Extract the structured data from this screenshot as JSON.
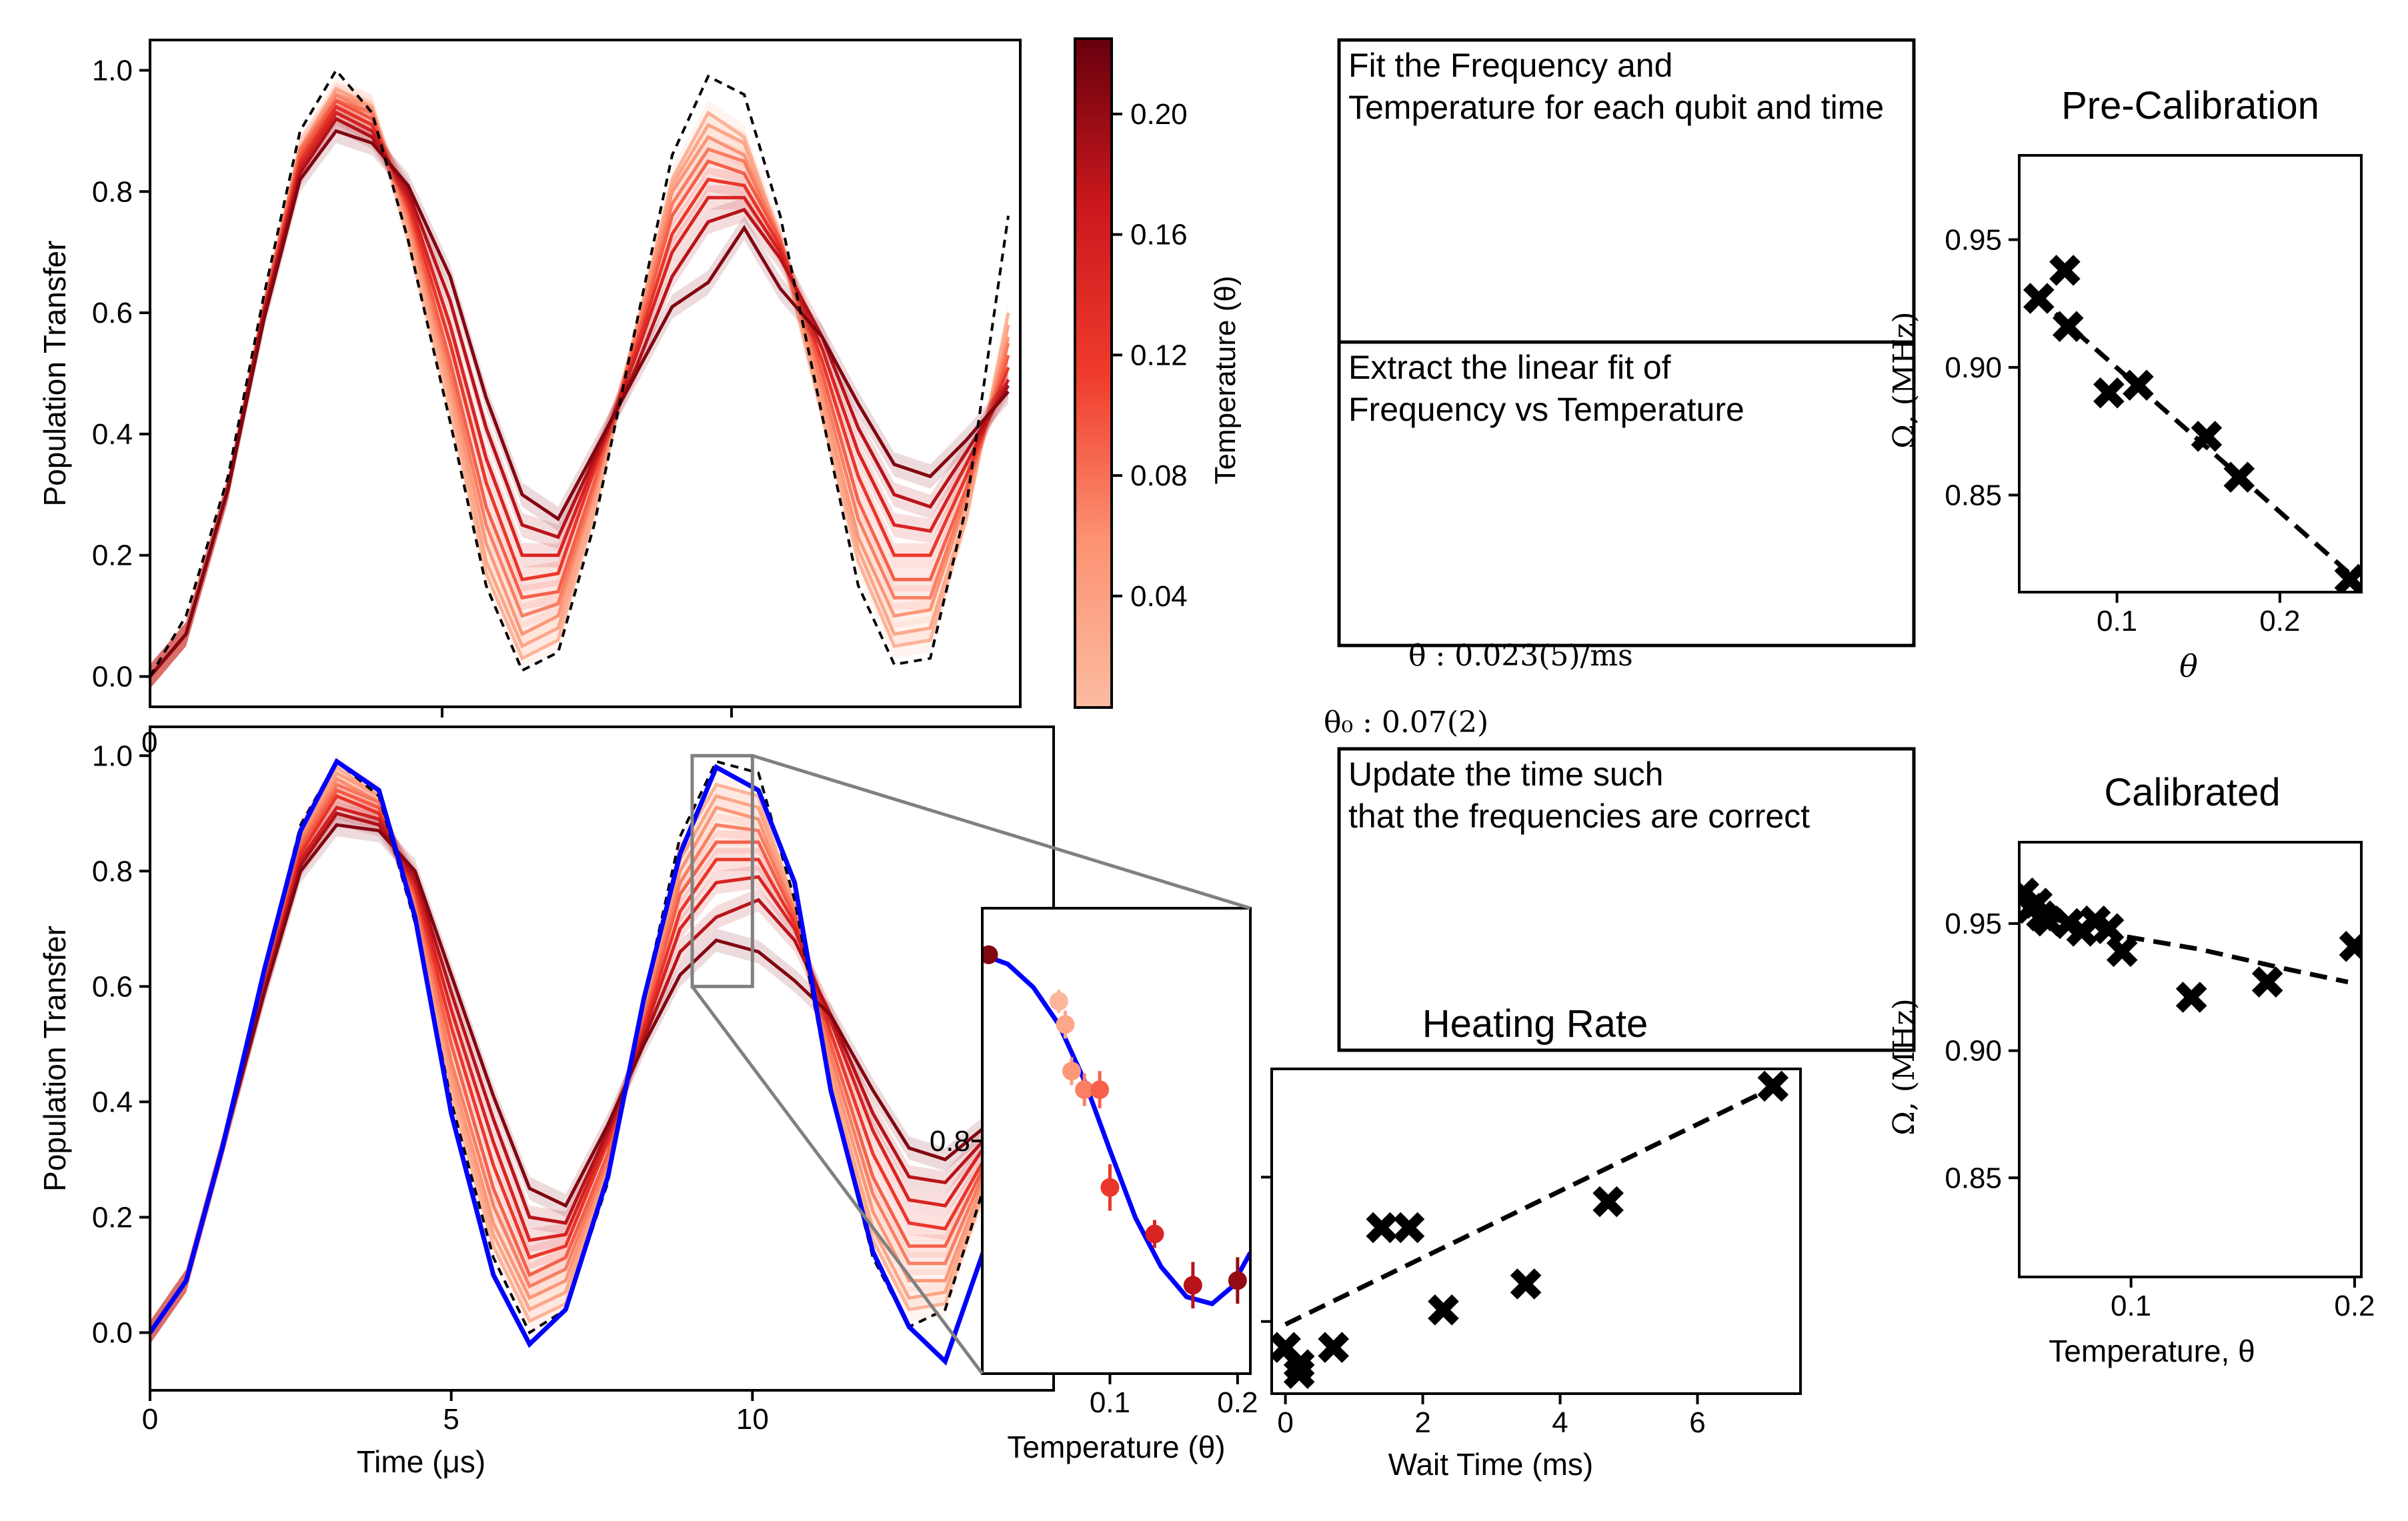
{
  "colors": {
    "low": "#fcbba1",
    "high": "#67000d",
    "fit": "#0000ff",
    "ideal": "#000000",
    "marker": "#000000",
    "box": "#000000",
    "zoom": "#808080"
  },
  "colorbar": {
    "label": "Temperature (θ)",
    "ticks": [
      "0.04",
      "0.08",
      "0.12",
      "0.16",
      "0.20"
    ],
    "tick_values": [
      0.04,
      0.08,
      0.12,
      0.16,
      0.2
    ],
    "range": [
      0.003,
      0.225
    ]
  },
  "steps": [
    {
      "text1": "Fit the Frequency and",
      "text2": " Temperature for each qubit and time"
    },
    {
      "text1": "Extract the linear fit of",
      "text2": " Frequency vs Temperature"
    },
    {
      "text1": "Update the time such",
      "text2": " that the frequencies are correct"
    }
  ],
  "fit_results": {
    "rate": "θ̇ : 0.023(5)/ms",
    "offset": "θ₀ : 0.07(2)"
  },
  "chart_data": [
    {
      "id": "raw",
      "type": "line",
      "xlabel": "",
      "ylabel": "Population Transfer",
      "xlim": [
        0,
        14.5
      ],
      "ylim": [
        -0.05,
        1.05
      ],
      "yticks": [
        0.0,
        0.2,
        0.4,
        0.6,
        0.8,
        1.0
      ],
      "ytick_labels": [
        "0.0",
        "0.2",
        "0.4",
        "0.6",
        "0.8",
        "1.0"
      ],
      "xtick_partial_label": "0",
      "x": [
        0,
        0.6,
        1.3,
        1.9,
        2.5,
        3.1,
        3.7,
        4.3,
        5.0,
        5.6,
        6.2,
        6.8,
        7.4,
        8.1,
        8.7,
        9.3,
        9.9,
        10.5,
        11.2,
        11.8,
        12.4,
        13.0,
        13.6,
        14.3
      ],
      "ideal": [
        0,
        0.1,
        0.33,
        0.63,
        0.9,
        1.0,
        0.93,
        0.72,
        0.42,
        0.15,
        0.01,
        0.04,
        0.25,
        0.58,
        0.86,
        0.99,
        0.96,
        0.76,
        0.43,
        0.15,
        0.02,
        0.03,
        0.28,
        0.76
      ],
      "series": [
        {
          "theta": 0.01,
          "values": [
            0,
            0.07,
            0.31,
            0.61,
            0.87,
            0.97,
            0.94,
            0.72,
            0.44,
            0.17,
            0.03,
            0.06,
            0.27,
            0.57,
            0.82,
            0.93,
            0.89,
            0.72,
            0.43,
            0.19,
            0.05,
            0.06,
            0.26,
            0.6
          ]
        },
        {
          "theta": 0.03,
          "values": [
            0,
            0.07,
            0.31,
            0.61,
            0.87,
            0.96,
            0.94,
            0.74,
            0.46,
            0.19,
            0.05,
            0.08,
            0.28,
            0.57,
            0.81,
            0.91,
            0.88,
            0.72,
            0.44,
            0.21,
            0.07,
            0.08,
            0.27,
            0.58
          ]
        },
        {
          "theta": 0.05,
          "values": [
            0,
            0.07,
            0.31,
            0.61,
            0.87,
            0.96,
            0.93,
            0.75,
            0.48,
            0.22,
            0.07,
            0.1,
            0.3,
            0.57,
            0.8,
            0.89,
            0.86,
            0.72,
            0.46,
            0.23,
            0.1,
            0.11,
            0.29,
            0.56
          ]
        },
        {
          "theta": 0.07,
          "values": [
            0,
            0.07,
            0.31,
            0.61,
            0.87,
            0.95,
            0.93,
            0.76,
            0.5,
            0.25,
            0.1,
            0.12,
            0.31,
            0.56,
            0.78,
            0.87,
            0.85,
            0.72,
            0.48,
            0.26,
            0.13,
            0.13,
            0.3,
            0.55
          ]
        },
        {
          "theta": 0.09,
          "values": [
            0,
            0.07,
            0.31,
            0.61,
            0.86,
            0.95,
            0.92,
            0.77,
            0.52,
            0.28,
            0.13,
            0.14,
            0.32,
            0.55,
            0.76,
            0.85,
            0.83,
            0.72,
            0.5,
            0.29,
            0.16,
            0.16,
            0.31,
            0.53
          ]
        },
        {
          "theta": 0.12,
          "values": [
            0,
            0.07,
            0.31,
            0.6,
            0.85,
            0.94,
            0.91,
            0.78,
            0.55,
            0.32,
            0.16,
            0.17,
            0.34,
            0.54,
            0.73,
            0.82,
            0.81,
            0.71,
            0.52,
            0.33,
            0.2,
            0.2,
            0.33,
            0.51
          ]
        },
        {
          "theta": 0.15,
          "values": [
            0,
            0.07,
            0.31,
            0.6,
            0.84,
            0.93,
            0.9,
            0.79,
            0.58,
            0.36,
            0.2,
            0.2,
            0.35,
            0.53,
            0.7,
            0.79,
            0.79,
            0.7,
            0.54,
            0.37,
            0.25,
            0.24,
            0.35,
            0.49
          ]
        },
        {
          "theta": 0.18,
          "values": [
            0,
            0.07,
            0.31,
            0.6,
            0.83,
            0.92,
            0.89,
            0.8,
            0.62,
            0.41,
            0.25,
            0.23,
            0.36,
            0.51,
            0.66,
            0.75,
            0.77,
            0.69,
            0.56,
            0.41,
            0.3,
            0.28,
            0.37,
            0.48
          ]
        },
        {
          "theta": 0.21,
          "values": [
            0,
            0.07,
            0.31,
            0.59,
            0.82,
            0.9,
            0.88,
            0.81,
            0.66,
            0.46,
            0.3,
            0.26,
            0.37,
            0.5,
            0.61,
            0.65,
            0.74,
            0.64,
            0.56,
            0.45,
            0.35,
            0.33,
            0.39,
            0.47
          ]
        }
      ]
    },
    {
      "id": "calibrated",
      "type": "line",
      "xlabel": "Time (μs)",
      "ylabel": "Population Transfer",
      "xlim": [
        0,
        15
      ],
      "ylim": [
        -0.1,
        1.05
      ],
      "xticks": [
        0,
        5,
        10
      ],
      "xtick_labels": [
        "0",
        "5",
        "10"
      ],
      "yticks": [
        0.0,
        0.2,
        0.4,
        0.6,
        0.8,
        1.0
      ],
      "ytick_labels": [
        "0.0",
        "0.2",
        "0.4",
        "0.6",
        "0.8",
        "1.0"
      ],
      "x": [
        0,
        0.6,
        1.2,
        1.9,
        2.5,
        3.1,
        3.8,
        4.4,
        5.0,
        5.7,
        6.3,
        6.9,
        7.6,
        8.2,
        8.8,
        9.4,
        10.1,
        10.7,
        11.3,
        12.0,
        12.6,
        13.2,
        13.9,
        14.5
      ],
      "ideal": [
        0,
        0.09,
        0.32,
        0.63,
        0.88,
        0.99,
        0.93,
        0.71,
        0.4,
        0.13,
        0.0,
        0.04,
        0.26,
        0.58,
        0.86,
        0.99,
        0.97,
        0.75,
        0.42,
        0.13,
        0.01,
        0.04,
        0.27,
        0.57
      ],
      "fit": [
        0,
        0.09,
        0.32,
        0.63,
        0.87,
        0.99,
        0.94,
        0.72,
        0.38,
        0.1,
        -0.02,
        0.04,
        0.27,
        0.58,
        0.83,
        0.98,
        0.94,
        0.78,
        0.42,
        0.14,
        0.01,
        -0.05,
        0.16,
        0.45
      ],
      "series": [
        {
          "theta": 0.01,
          "values": [
            0,
            0.09,
            0.32,
            0.62,
            0.87,
            0.98,
            0.93,
            0.72,
            0.41,
            0.15,
            0.02,
            0.05,
            0.27,
            0.57,
            0.84,
            0.95,
            0.93,
            0.74,
            0.43,
            0.16,
            0.04,
            0.05,
            0.26,
            0.55
          ]
        },
        {
          "theta": 0.03,
          "values": [
            0,
            0.09,
            0.32,
            0.62,
            0.87,
            0.97,
            0.93,
            0.73,
            0.43,
            0.17,
            0.04,
            0.07,
            0.28,
            0.57,
            0.82,
            0.93,
            0.91,
            0.74,
            0.44,
            0.18,
            0.06,
            0.07,
            0.27,
            0.54
          ]
        },
        {
          "theta": 0.05,
          "values": [
            0,
            0.09,
            0.32,
            0.62,
            0.86,
            0.96,
            0.92,
            0.74,
            0.45,
            0.19,
            0.06,
            0.09,
            0.29,
            0.56,
            0.8,
            0.91,
            0.89,
            0.73,
            0.46,
            0.21,
            0.09,
            0.09,
            0.28,
            0.52
          ]
        },
        {
          "theta": 0.07,
          "values": [
            0,
            0.09,
            0.32,
            0.61,
            0.85,
            0.95,
            0.92,
            0.75,
            0.47,
            0.22,
            0.08,
            0.11,
            0.3,
            0.55,
            0.78,
            0.88,
            0.87,
            0.73,
            0.48,
            0.24,
            0.12,
            0.12,
            0.29,
            0.51
          ]
        },
        {
          "theta": 0.09,
          "values": [
            0,
            0.09,
            0.32,
            0.61,
            0.84,
            0.94,
            0.91,
            0.76,
            0.5,
            0.25,
            0.1,
            0.13,
            0.31,
            0.54,
            0.76,
            0.85,
            0.85,
            0.72,
            0.5,
            0.27,
            0.15,
            0.15,
            0.3,
            0.49
          ]
        },
        {
          "theta": 0.12,
          "values": [
            0,
            0.09,
            0.32,
            0.6,
            0.83,
            0.93,
            0.9,
            0.77,
            0.53,
            0.29,
            0.13,
            0.15,
            0.33,
            0.53,
            0.73,
            0.82,
            0.82,
            0.71,
            0.52,
            0.31,
            0.19,
            0.18,
            0.31,
            0.47
          ]
        },
        {
          "theta": 0.15,
          "values": [
            0,
            0.09,
            0.32,
            0.6,
            0.82,
            0.91,
            0.89,
            0.78,
            0.56,
            0.33,
            0.16,
            0.17,
            0.34,
            0.52,
            0.7,
            0.78,
            0.79,
            0.7,
            0.54,
            0.35,
            0.23,
            0.22,
            0.33,
            0.46
          ]
        },
        {
          "theta": 0.18,
          "values": [
            0,
            0.09,
            0.32,
            0.59,
            0.81,
            0.9,
            0.88,
            0.79,
            0.59,
            0.37,
            0.2,
            0.19,
            0.35,
            0.51,
            0.66,
            0.72,
            0.75,
            0.68,
            0.55,
            0.38,
            0.27,
            0.26,
            0.34,
            0.45
          ]
        },
        {
          "theta": 0.21,
          "values": [
            0,
            0.09,
            0.32,
            0.59,
            0.8,
            0.88,
            0.87,
            0.8,
            0.62,
            0.41,
            0.25,
            0.22,
            0.36,
            0.5,
            0.62,
            0.68,
            0.66,
            0.61,
            0.55,
            0.42,
            0.32,
            0.3,
            0.36,
            0.44
          ]
        }
      ],
      "zoom_window": {
        "x": [
          9.0,
          10.0
        ],
        "y": [
          0.6,
          1.0
        ]
      }
    },
    {
      "id": "inset",
      "type": "scatter",
      "xlabel": "Temperature (θ)",
      "xlim": [
        0.0,
        0.21
      ],
      "ylim": [
        0.7,
        0.9
      ],
      "xticks": [
        0.1,
        0.2
      ],
      "xtick_labels": [
        "0.1",
        "0.2"
      ],
      "yticks": [
        0.8
      ],
      "ytick_labels": [
        "0.8"
      ],
      "points": [
        {
          "x": 0.005,
          "y": 0.88,
          "err": 0.004,
          "theta": 0.21
        },
        {
          "x": 0.06,
          "y": 0.86,
          "err": 0.005,
          "theta": 0.01
        },
        {
          "x": 0.065,
          "y": 0.85,
          "err": 0.006,
          "theta": 0.03
        },
        {
          "x": 0.07,
          "y": 0.83,
          "err": 0.006,
          "theta": 0.05
        },
        {
          "x": 0.08,
          "y": 0.822,
          "err": 0.007,
          "theta": 0.07
        },
        {
          "x": 0.092,
          "y": 0.822,
          "err": 0.008,
          "theta": 0.09
        },
        {
          "x": 0.1,
          "y": 0.78,
          "err": 0.01,
          "theta": 0.12
        },
        {
          "x": 0.135,
          "y": 0.76,
          "err": 0.006,
          "theta": 0.15
        },
        {
          "x": 0.165,
          "y": 0.738,
          "err": 0.01,
          "theta": 0.18
        },
        {
          "x": 0.2,
          "y": 0.74,
          "err": 0.01,
          "theta": 0.2
        }
      ],
      "fit_curve": [
        [
          0.0,
          0.88
        ],
        [
          0.02,
          0.876
        ],
        [
          0.04,
          0.866
        ],
        [
          0.06,
          0.85
        ],
        [
          0.08,
          0.826
        ],
        [
          0.1,
          0.796
        ],
        [
          0.12,
          0.767
        ],
        [
          0.14,
          0.746
        ],
        [
          0.16,
          0.733
        ],
        [
          0.18,
          0.73
        ],
        [
          0.195,
          0.737
        ],
        [
          0.21,
          0.752
        ]
      ]
    },
    {
      "id": "heating",
      "type": "scatter",
      "title": "Heating Rate",
      "xlabel": "Wait Time (ms)",
      "xlim": [
        -0.2,
        7.5
      ],
      "ylim": [
        0.02,
        0.245
      ],
      "xticks": [
        0,
        2,
        4,
        6
      ],
      "xtick_labels": [
        "0",
        "2",
        "4",
        "6"
      ],
      "yticks": [
        0.07,
        0.17
      ],
      "points": [
        {
          "x": 0.0,
          "y": 0.052
        },
        {
          "x": 0.2,
          "y": 0.04
        },
        {
          "x": 0.2,
          "y": 0.034
        },
        {
          "x": 0.7,
          "y": 0.052
        },
        {
          "x": 1.4,
          "y": 0.135
        },
        {
          "x": 1.8,
          "y": 0.135
        },
        {
          "x": 2.3,
          "y": 0.078
        },
        {
          "x": 3.5,
          "y": 0.096
        },
        {
          "x": 4.7,
          "y": 0.153
        },
        {
          "x": 7.1,
          "y": 0.233
        }
      ],
      "fit_line": [
        [
          0.0,
          0.068
        ],
        [
          7.1,
          0.232
        ]
      ]
    },
    {
      "id": "precal",
      "type": "scatter",
      "title": "Pre-Calibration",
      "xlabel": "θ",
      "ylabel": "Ω, (MHz)",
      "xlim": [
        0.04,
        0.25
      ],
      "ylim": [
        0.812,
        0.983
      ],
      "xticks": [
        0.1,
        0.2
      ],
      "xtick_labels": [
        "0.1",
        "0.2"
      ],
      "yticks": [
        0.85,
        0.9,
        0.95
      ],
      "ytick_labels": [
        "0.85",
        "0.90",
        "0.95"
      ],
      "points": [
        {
          "x": 0.052,
          "y": 0.927
        },
        {
          "x": 0.068,
          "y": 0.938
        },
        {
          "x": 0.07,
          "y": 0.916
        },
        {
          "x": 0.095,
          "y": 0.89
        },
        {
          "x": 0.113,
          "y": 0.893
        },
        {
          "x": 0.155,
          "y": 0.873
        },
        {
          "x": 0.175,
          "y": 0.857
        },
        {
          "x": 0.243,
          "y": 0.817
        }
      ],
      "fit_line": [
        [
          0.05,
          0.928
        ],
        [
          0.245,
          0.818
        ]
      ]
    },
    {
      "id": "calib",
      "type": "scatter",
      "title": "Calibrated",
      "xlabel": "Temperature, θ",
      "ylabel": "Ω, (MHz)",
      "xlim": [
        0.05,
        0.203
      ],
      "ylim": [
        0.811,
        0.982
      ],
      "xticks": [
        0.1,
        0.2
      ],
      "xtick_labels": [
        "0.1",
        "0.2"
      ],
      "yticks": [
        0.85,
        0.9,
        0.95
      ],
      "ytick_labels": [
        "0.85",
        "0.90",
        "0.95"
      ],
      "points": [
        {
          "x": 0.052,
          "y": 0.962
        },
        {
          "x": 0.055,
          "y": 0.956
        },
        {
          "x": 0.058,
          "y": 0.958
        },
        {
          "x": 0.06,
          "y": 0.953
        },
        {
          "x": 0.063,
          "y": 0.951
        },
        {
          "x": 0.072,
          "y": 0.95
        },
        {
          "x": 0.078,
          "y": 0.947
        },
        {
          "x": 0.084,
          "y": 0.951
        },
        {
          "x": 0.09,
          "y": 0.948
        },
        {
          "x": 0.096,
          "y": 0.939
        },
        {
          "x": 0.127,
          "y": 0.921
        },
        {
          "x": 0.161,
          "y": 0.927
        },
        {
          "x": 0.2,
          "y": 0.941
        }
      ],
      "fit_line": [
        [
          0.052,
          0.955
        ],
        [
          0.09,
          0.946
        ],
        [
          0.13,
          0.94
        ],
        [
          0.17,
          0.932
        ],
        [
          0.197,
          0.927
        ]
      ]
    }
  ]
}
